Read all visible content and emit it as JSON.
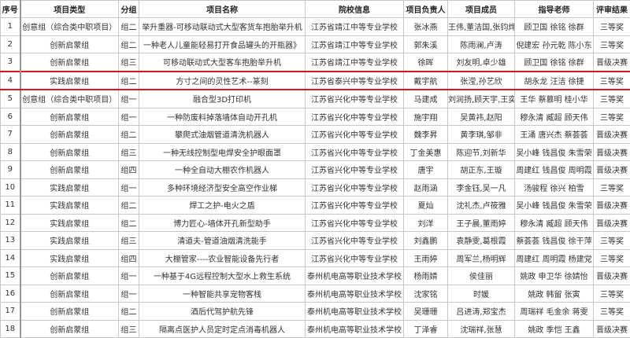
{
  "headers": [
    "序号",
    "项目类型",
    "分组",
    "项目名称",
    "院校信息",
    "项目负责人",
    "项目成员",
    "指导老师",
    "评审结果"
  ],
  "highlight_color": "#e0161b",
  "highlighted_row": 4,
  "rows": [
    [
      "1",
      "创意组（综合类中职项目）",
      "组二",
      "举升重器-可移动联动式大型客货车抱胎举升机",
      "江苏省靖江中等专业学校",
      "张冰燕",
      "王伟,董洁国,张钧烨",
      "顾卫国 徐铭 徐群",
      "三等奖"
    ],
    [
      "2",
      "创新启蒙组",
      "组二",
      "一种老人儿童能轻易打开食品罐头的开瓶器》",
      "江苏省靖江中等专业学校",
      "郭朱溪",
      "陈雨澜,卢涛",
      "倪建宏 孙元乾 陈小东",
      "三等奖"
    ],
    [
      "3",
      "创新启蒙组",
      "组三",
      "可移动联动式大型客车抱胎举升机",
      "江苏省靖江中等专业学校",
      "徐晖",
      "刘友明,卓少雄",
      "顾卫国 徐铭 徐群",
      "晋级决赛"
    ],
    [
      "4",
      "实践启蒙组",
      "组二",
      "方寸之间的灵性艺术--篆刻",
      "江苏省泰兴中等专业学校",
      "戴宇航",
      "张滢,孙艺欣",
      "胡永龙 汪洁 徐捷",
      "三等奖"
    ],
    [
      "5",
      "创意组（综合类中职项目）",
      "组一",
      "融合型3D打印机",
      "江苏省兴化中等专业学校",
      "马建成",
      "刘润扬,顾天宇,王奕",
      "王华 蔡慕明 桂小华",
      "三等奖"
    ],
    [
      "6",
      "创新启蒙组",
      "组一",
      "一种防废料掉落墙体自动开孔机",
      "江苏省兴化中等专业学校",
      "施宇翔",
      "吴黄祎,赵阳",
      "穆永清 臧超 顾天伟",
      "三等奖"
    ],
    [
      "7",
      "创新启蒙组",
      "组二",
      "攀爬式油烟管道清洗机器人",
      "江苏省兴化中等专业学校",
      "魏李昇",
      "黄李琪,邹非",
      "王涌 唐兴杰 蔡荟荟",
      "晋级决赛"
    ],
    [
      "8",
      "创新启蒙组",
      "组三",
      "一种无线控制型电焊安全护眼面罩",
      "江苏省兴化中等专业学校",
      "丁金美惠",
      "陈迎节,刘新华",
      "吴小峰 钱昌俊 朱雪荣",
      "晋级决赛"
    ],
    [
      "9",
      "创新启蒙组",
      "组四",
      "一种全自动大棚农作机器人",
      "江苏省兴化中等专业学校",
      "唐宇",
      "胡正东,王璇",
      "周建红 钱昌俊 周明霞",
      "晋级决赛"
    ],
    [
      "10",
      "实践启蒙组",
      "组一",
      "多种环境经济型安全高空作业梯",
      "江苏省兴化中等专业学校",
      "赵雨涵",
      "李金钰,吴一凡",
      "汤骏程 徐兴 柏雪",
      "三等奖"
    ],
    [
      "11",
      "实践启蒙组",
      "组二",
      "焊工之护-电火之盾",
      "江苏省兴化中等专业学校",
      "夏灿",
      "沈礼杰,卢筱雅",
      "吴小峰 钱昌俊 朱雪荣",
      "晋级决赛"
    ],
    [
      "12",
      "实践启蒙组",
      "组二",
      "博力匠心-墙体开孔新型助手",
      "江苏省兴化中等专业学校",
      "刘洋",
      "王子晨,董雨婷",
      "穆永清 臧超 顾天伟",
      "晋级决赛"
    ],
    [
      "13",
      "实践启蒙组",
      "组三",
      "清道夫-管道油烟清洗能手",
      "江苏省兴化中等专业学校",
      "刘鑫鹏",
      "袁静雯,葛根霞",
      "蔡荟荟 钱昌俊 徐干萍",
      "三等奖"
    ],
    [
      "14",
      "实践启蒙组",
      "组四",
      "大棚管家----农业智能设备先行者",
      "江苏省兴化中等专业学校",
      "王雨婷",
      "周军兰,杨明辉",
      "周建红 周明霞 杨建党",
      "三等奖"
    ],
    [
      "15",
      "创新启蒙组",
      "组一",
      "一种基于4G远程控制大型水上救生系统",
      "泰州机电高等职业技术学校",
      "杨雨婧",
      "侯佳丽",
      "姚政 申卫华 徐婧怡",
      "晋级决赛"
    ],
    [
      "16",
      "创新启蒙组",
      "组一",
      "一种智能共享宠物客栈",
      "泰州机电高等职业技术学校",
      "沈家铭",
      "时媛",
      "姚政 韩留 张寅",
      "三等奖"
    ],
    [
      "17",
      "创新启蒙组",
      "组二",
      "酒后代驾护航先锋",
      "泰州机电高等职业技术学校",
      "吴珊珊",
      "吕进涛,郑宝杰",
      "周瑞祥 毛金余 蒋雯",
      "三等奖"
    ],
    [
      "18",
      "创新启蒙组",
      "组三",
      "隔离点医护人员定时定点消毒机器人",
      "泰州机电高等职业技术学校",
      "丁泽睿",
      "沈瑞祥,张慧",
      "姚政 季恺 王鑫",
      "晋级决赛"
    ]
  ]
}
